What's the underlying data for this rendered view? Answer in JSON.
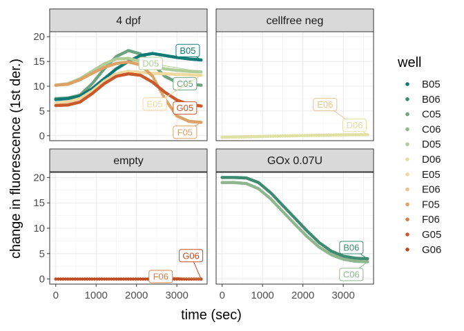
{
  "chart_data": {
    "type": "scatter",
    "xlabel": "time (sec)",
    "ylabel": "change in fluorescence (1st der.)",
    "xlim": [
      -150,
      3750
    ],
    "ylim": [
      -1,
      21
    ],
    "x_ticks": [
      0,
      1000,
      2000,
      3000
    ],
    "y_ticks": [
      0,
      5,
      10,
      15,
      20
    ],
    "grid": true,
    "legend": {
      "title": "well",
      "position": "right",
      "entries": [
        "B05",
        "B06",
        "C05",
        "C06",
        "D05",
        "D06",
        "E05",
        "E06",
        "F05",
        "F06",
        "G05",
        "G06"
      ]
    },
    "colors": {
      "B05": "#117a75",
      "B06": "#3e8b72",
      "C05": "#6da382",
      "C06": "#8fb68e",
      "D05": "#b0cd98",
      "D06": "#dfe0a4",
      "E05": "#efd99f",
      "E06": "#e3c58d",
      "F05": "#dca266",
      "F06": "#cf8149",
      "G05": "#c9582c",
      "G06": "#c04b22"
    },
    "panels": [
      {
        "title": "4 dpf",
        "series": [
          {
            "name": "C05",
            "x": [
              0,
              300,
              600,
              900,
              1200,
              1500,
              1800,
              2100,
              2400,
              2700,
              3000,
              3300,
              3600
            ],
            "y": [
              7.5,
              7.6,
              8.2,
              10.5,
              13.5,
              16.0,
              17.2,
              16.5,
              14.5,
              12.0,
              10.8,
              10.4,
              10.2
            ]
          },
          {
            "name": "B05",
            "x": [
              0,
              300,
              600,
              900,
              1200,
              1500,
              1800,
              2100,
              2400,
              2700,
              3000,
              3300,
              3600
            ],
            "y": [
              7.3,
              7.5,
              8.0,
              9.5,
              11.5,
              13.5,
              15.0,
              16.2,
              16.6,
              16.2,
              15.8,
              15.5,
              15.3
            ]
          },
          {
            "name": "D05",
            "x": [
              0,
              300,
              600,
              900,
              1200,
              1500,
              1800,
              2100,
              2400,
              2700,
              3000,
              3300,
              3600
            ],
            "y": [
              10.2,
              10.5,
              11.5,
              13.0,
              14.5,
              15.5,
              15.6,
              15.0,
              14.2,
              13.5,
              13.2,
              13.0,
              12.9
            ]
          },
          {
            "name": "E05",
            "x": [
              0,
              300,
              600,
              900,
              1200,
              1500,
              1800,
              2100,
              2400,
              2700,
              3000,
              3300,
              3600
            ],
            "y": [
              6.6,
              6.8,
              7.5,
              9.0,
              11.0,
              12.5,
              13.0,
              12.8,
              12.6,
              12.5,
              12.4,
              12.3,
              12.2
            ]
          },
          {
            "name": "F05",
            "x": [
              0,
              300,
              600,
              900,
              1200,
              1500,
              1800,
              2100,
              2400,
              2700,
              3000,
              3300,
              3600
            ],
            "y": [
              10.2,
              10.4,
              11.3,
              12.6,
              13.8,
              14.6,
              14.9,
              14.3,
              12.0,
              7.5,
              4.0,
              2.9,
              2.7
            ]
          },
          {
            "name": "G05",
            "x": [
              0,
              300,
              600,
              900,
              1200,
              1500,
              1800,
              2100,
              2400,
              2700,
              3000,
              3300,
              3600
            ],
            "y": [
              6.1,
              6.2,
              6.8,
              8.5,
              10.5,
              12.0,
              12.5,
              12.2,
              10.8,
              8.8,
              7.2,
              6.3,
              6.0
            ]
          }
        ],
        "labels": [
          "B05",
          "D05",
          "C05",
          "E05",
          "G05",
          "F05"
        ]
      },
      {
        "title": "cellfree neg",
        "series": [
          {
            "name": "E06",
            "x": [
              0,
              600,
              1200,
              1800,
              2400,
              3000,
              3600
            ],
            "y": [
              -0.3,
              -0.2,
              -0.1,
              0.0,
              0.1,
              0.2,
              0.2
            ]
          },
          {
            "name": "D06",
            "x": [
              0,
              600,
              1200,
              1800,
              2400,
              3000,
              3600
            ],
            "y": [
              -0.3,
              -0.25,
              -0.1,
              0.0,
              0.05,
              0.15,
              0.2
            ]
          }
        ],
        "labels": [
          "E06",
          "D06"
        ]
      },
      {
        "title": "empty",
        "series": [
          {
            "name": "F06",
            "x": [
              0,
              600,
              1200,
              1800,
              2400,
              3000,
              3600
            ],
            "y": [
              0,
              0,
              0,
              0,
              0,
              0,
              0
            ]
          },
          {
            "name": "G06",
            "x": [
              0,
              600,
              1200,
              1800,
              2400,
              3000,
              3600
            ],
            "y": [
              0,
              0,
              0,
              0,
              0,
              0,
              0
            ]
          }
        ],
        "labels": [
          "G06",
          "F06"
        ]
      },
      {
        "title": "GOx 0.07U",
        "series": [
          {
            "name": "B06",
            "x": [
              0,
              300,
              600,
              900,
              1200,
              1500,
              1800,
              2100,
              2400,
              2700,
              3000,
              3300,
              3600
            ],
            "y": [
              20.0,
              20.0,
              19.9,
              19.0,
              17.0,
              14.5,
              12.0,
              9.5,
              7.2,
              5.5,
              4.5,
              4.1,
              4.0
            ]
          },
          {
            "name": "C06",
            "x": [
              0,
              300,
              600,
              900,
              1200,
              1500,
              1800,
              2100,
              2400,
              2700,
              3000,
              3300,
              3600
            ],
            "y": [
              19.0,
              19.0,
              18.8,
              17.8,
              15.8,
              13.3,
              10.8,
              8.4,
              6.3,
              4.8,
              3.9,
              3.5,
              3.4
            ]
          }
        ],
        "labels": [
          "B06",
          "C06"
        ]
      }
    ]
  }
}
